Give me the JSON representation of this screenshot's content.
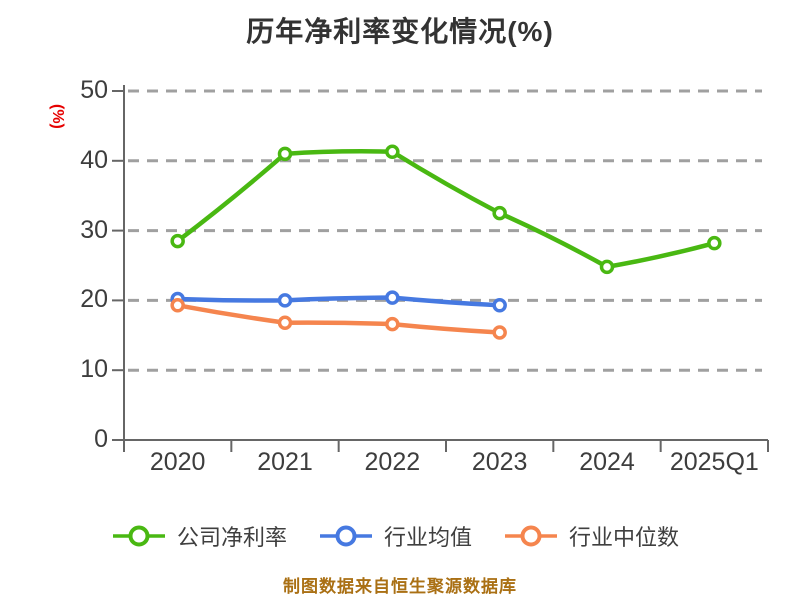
{
  "chart_data": {
    "type": "line",
    "title": "历年净利率变化情况(%)",
    "ylabel": "(%)",
    "footer": "制图数据来自恒生聚源数据库",
    "categories": [
      "2020",
      "2021",
      "2022",
      "2023",
      "2024",
      "2025Q1"
    ],
    "y_ticks": [
      0,
      10,
      20,
      30,
      40,
      50
    ],
    "ylim": [
      0,
      50
    ],
    "grid": "horizontal-dashed",
    "legend_position": "bottom",
    "marker": "open-circle-white-fill",
    "series": [
      {
        "name": "公司净利率",
        "color": "#49b812",
        "values": [
          28.5,
          41.0,
          41.3,
          32.5,
          24.8,
          28.2
        ]
      },
      {
        "name": "行业均值",
        "color": "#4679e1",
        "values": [
          20.2,
          20.0,
          20.4,
          19.3,
          null,
          null
        ]
      },
      {
        "name": "行业中位数",
        "color": "#f5854e",
        "values": [
          19.3,
          16.8,
          16.6,
          15.4,
          null,
          null
        ]
      }
    ],
    "style_colors": {
      "title_text": "#333333",
      "tick_text": "#3d3d3d",
      "axis_line": "#666666",
      "gridline": "#a0a0a0",
      "y_unit_text": "#e60000",
      "footer_text": "#aa7014",
      "background": "#ffffff"
    }
  }
}
